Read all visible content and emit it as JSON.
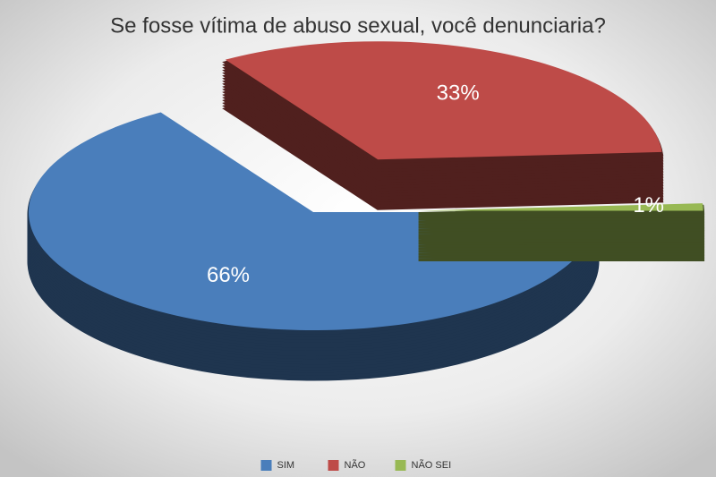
{
  "chart_data": {
    "type": "pie",
    "title": "Se fosse vítima de abuso sexual, você denunciaria?",
    "categories": [
      "SIM",
      "NÃO",
      "NÃO SEI"
    ],
    "values": [
      66,
      33,
      1
    ],
    "value_labels": [
      "66%",
      "33%",
      "1%"
    ],
    "colors": [
      "#4a7ebb",
      "#be4b48",
      "#98b954"
    ],
    "legend": "bottom"
  }
}
